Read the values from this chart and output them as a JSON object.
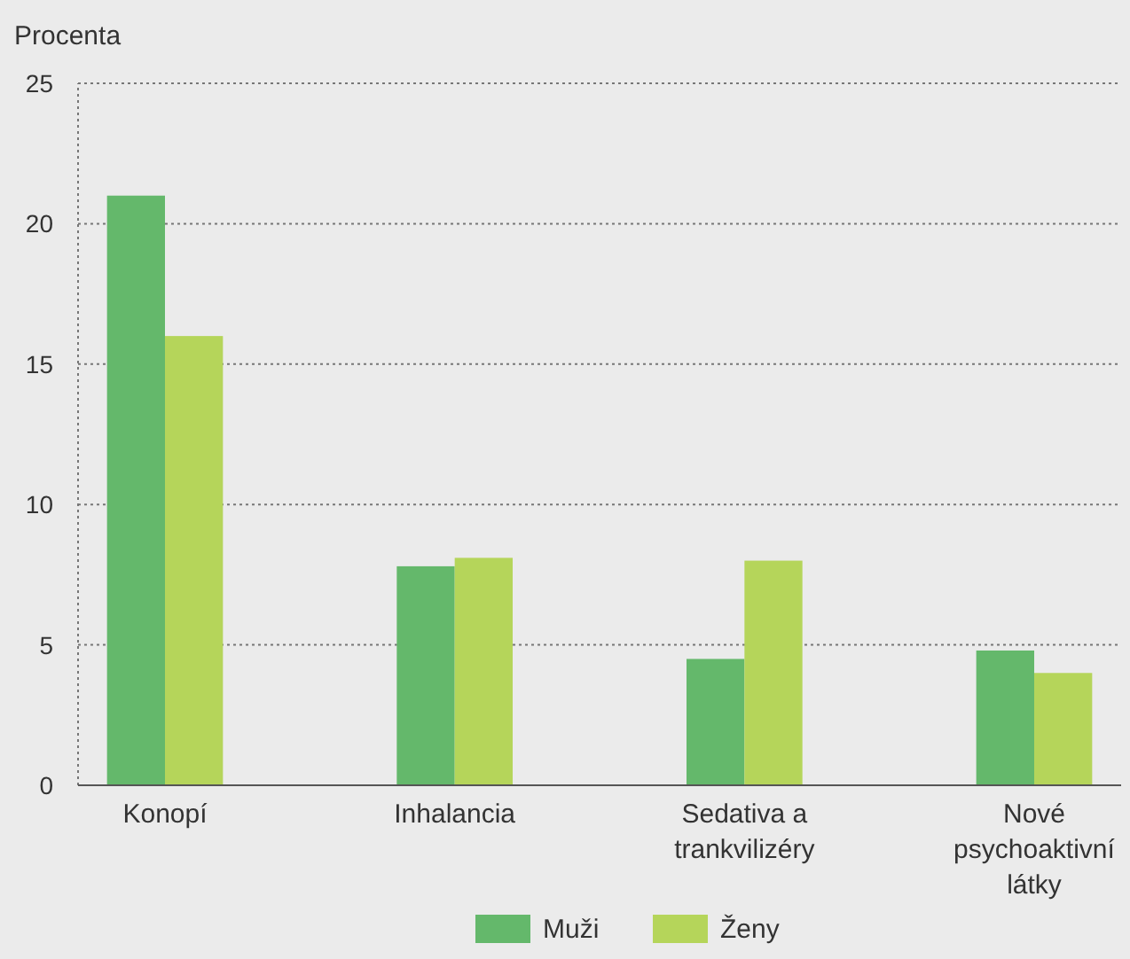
{
  "chart_data": {
    "type": "bar",
    "ylabel": "Procenta",
    "categories": [
      "Konopí",
      "Inhalancia",
      "Sedativa a trankvilizéry",
      "Nové psychoaktivní látky"
    ],
    "series": [
      {
        "name": "Muži",
        "color": "#64b86b",
        "values": [
          21,
          7.8,
          4.5,
          4.8
        ]
      },
      {
        "name": "Ženy",
        "color": "#b5d55a",
        "values": [
          16,
          8.1,
          8.0,
          4.0
        ]
      }
    ],
    "ylim": [
      0,
      25
    ],
    "yticks": [
      0,
      5,
      10,
      15,
      20,
      25
    ],
    "grid": "y",
    "legend": "bottom"
  }
}
